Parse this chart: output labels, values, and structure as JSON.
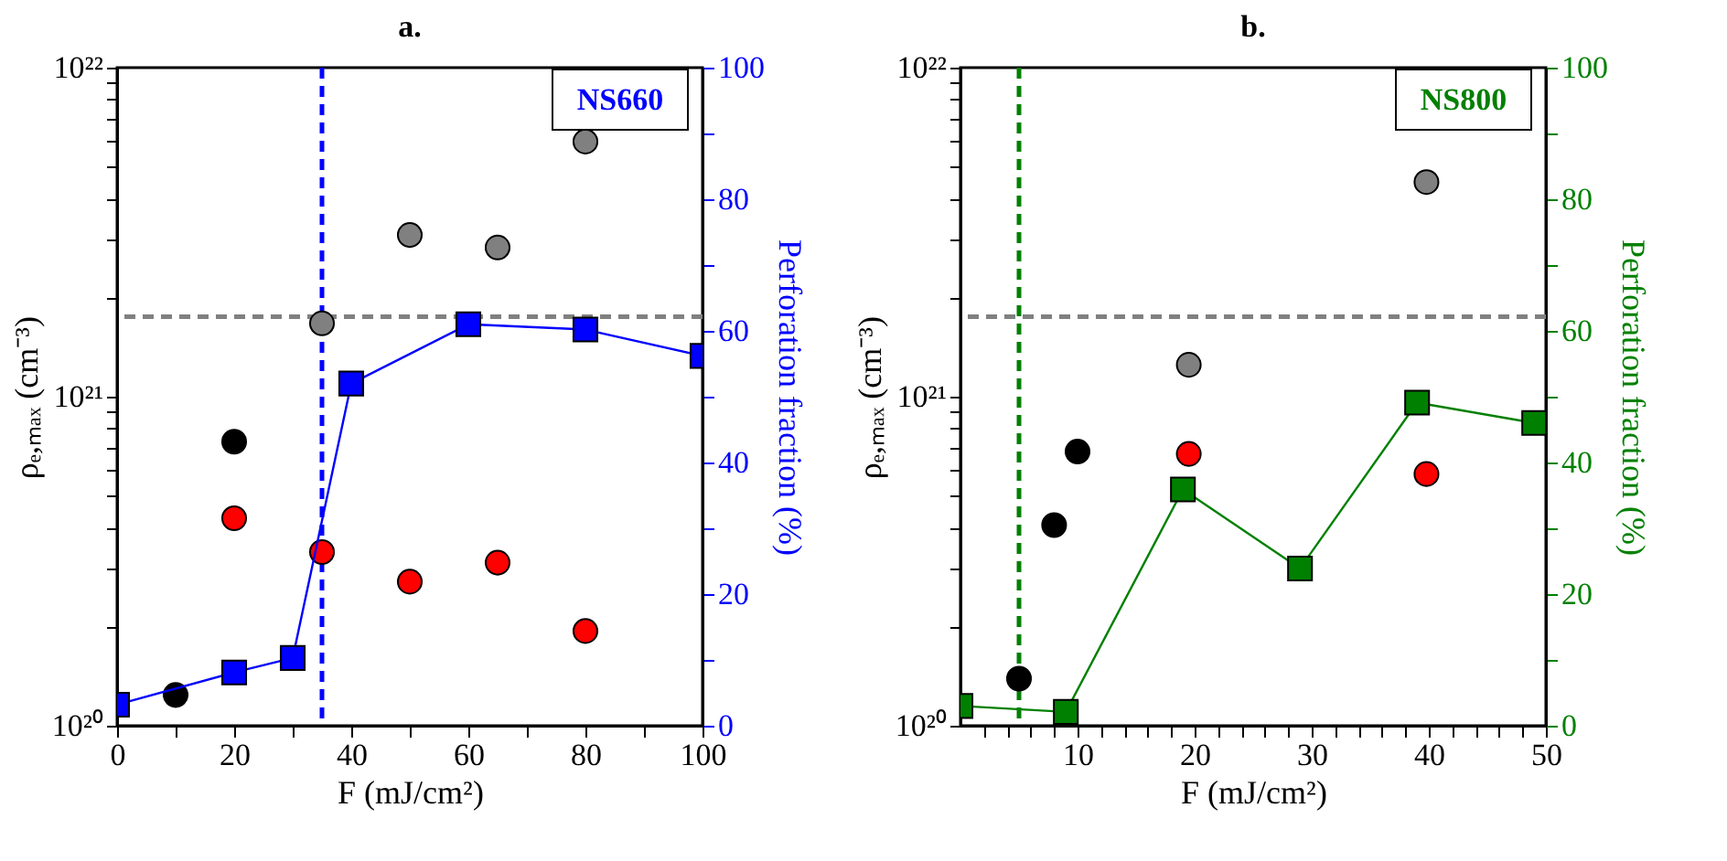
{
  "chart_data": [
    {
      "type": "scatter",
      "title": "a.",
      "xlabel": "F (mJ/cm²)",
      "ylabel": "ρₑ,ₘₐₓ (cm⁻³)",
      "y2label": "Perforation fraction (%)",
      "annotations": [
        "NS660"
      ],
      "log": "y",
      "grid": false,
      "xlim": [
        0,
        100
      ],
      "xticks": [
        0,
        {
          "value": 10,
          "label": null
        },
        20,
        {
          "value": 30,
          "label": null
        },
        40,
        {
          "value": 50,
          "label": null
        },
        60,
        {
          "value": 70,
          "label": null
        },
        80,
        {
          "value": 90,
          "label": null
        },
        100
      ],
      "ylim": [
        1e+20,
        1e+22
      ],
      "yticks": [
        {
          "value": 1e+20,
          "label": "10²⁰"
        },
        {
          "value": 2e+20,
          "label": null
        },
        {
          "value": 3e+20,
          "label": null
        },
        {
          "value": 4e+20,
          "label": null
        },
        {
          "value": 5e+20,
          "label": null
        },
        {
          "value": 6e+20,
          "label": null
        },
        {
          "value": 7e+20,
          "label": null
        },
        {
          "value": 8e+20,
          "label": null
        },
        {
          "value": 9e+20,
          "label": null
        },
        {
          "value": 1e+21,
          "label": "10²¹"
        },
        {
          "value": 2e+21,
          "label": null
        },
        {
          "value": 3e+21,
          "label": null
        },
        {
          "value": 4e+21,
          "label": null
        },
        {
          "value": 5e+21,
          "label": null
        },
        {
          "value": 6e+21,
          "label": null
        },
        {
          "value": 7e+21,
          "label": null
        },
        {
          "value": 8e+21,
          "label": null
        },
        {
          "value": 9e+21,
          "label": null
        },
        {
          "value": 1e+22,
          "label": "10²²"
        }
      ],
      "y2lim": [
        0,
        100
      ],
      "y2ticks": [
        0,
        {
          "value": 10,
          "label": null
        },
        20,
        {
          "value": 30,
          "label": null
        },
        40,
        {
          "value": 50,
          "label": null
        },
        60,
        {
          "value": 70,
          "label": null
        },
        80,
        {
          "value": 90,
          "label": null
        },
        100
      ],
      "ref_lines": [
        {
          "axis": "y",
          "value": 1.75e+21,
          "color": "#808080",
          "line_style": "dashed"
        },
        {
          "axis": "x",
          "value": 35,
          "color": "#0000ff",
          "line_style": "dashed"
        }
      ],
      "series": [
        {
          "marker": "circle",
          "color": "#000000",
          "x": [
            10,
            20
          ],
          "values": [
            1.24e+20,
            7.3e+20
          ]
        },
        {
          "marker": "circle",
          "color": "#808080",
          "x": [
            35,
            50,
            65,
            80
          ],
          "values": [
            1.67e+21,
            3.1e+21,
            2.84e+21,
            5.96e+21
          ]
        },
        {
          "marker": "circle",
          "color": "#ff0000",
          "x": [
            20,
            35,
            50,
            65,
            80
          ],
          "values": [
            4.27e+20,
            3.37e+20,
            2.74e+20,
            3.13e+20,
            1.94e+20
          ]
        },
        {
          "type": "line",
          "marker": "square",
          "line_style": "solid",
          "axis": "y2",
          "color": "#0000ff",
          "x": [
            0,
            20,
            30,
            40,
            60,
            80,
            100
          ],
          "values": [
            3.2,
            8.1,
            10.3,
            52,
            61,
            60.2,
            56.2
          ]
        }
      ]
    },
    {
      "type": "scatter",
      "title": "b.",
      "xlabel": "F (mJ/cm²)",
      "ylabel": "ρₑ,ₘₐₓ (cm⁻³)",
      "y2label": "Perforation fraction (%)",
      "annotations": [
        "NS800"
      ],
      "log": "y",
      "grid": false,
      "xlim": [
        0,
        50
      ],
      "xticks": [
        {
          "value": 2,
          "label": null
        },
        {
          "value": 4,
          "label": null
        },
        {
          "value": 6,
          "label": null
        },
        {
          "value": 8,
          "label": null
        },
        10,
        {
          "value": 12,
          "label": null
        },
        {
          "value": 14,
          "label": null
        },
        {
          "value": 16,
          "label": null
        },
        {
          "value": 18,
          "label": null
        },
        20,
        {
          "value": 22,
          "label": null
        },
        {
          "value": 24,
          "label": null
        },
        {
          "value": 26,
          "label": null
        },
        {
          "value": 28,
          "label": null
        },
        30,
        {
          "value": 32,
          "label": null
        },
        {
          "value": 34,
          "label": null
        },
        {
          "value": 36,
          "label": null
        },
        {
          "value": 38,
          "label": null
        },
        40,
        {
          "value": 42,
          "label": null
        },
        {
          "value": 44,
          "label": null
        },
        {
          "value": 46,
          "label": null
        },
        {
          "value": 48,
          "label": null
        },
        50
      ],
      "ylim": [
        1e+20,
        1e+22
      ],
      "yticks": [
        {
          "value": 1e+20,
          "label": "10²⁰"
        },
        {
          "value": 2e+20,
          "label": null
        },
        {
          "value": 3e+20,
          "label": null
        },
        {
          "value": 4e+20,
          "label": null
        },
        {
          "value": 5e+20,
          "label": null
        },
        {
          "value": 6e+20,
          "label": null
        },
        {
          "value": 7e+20,
          "label": null
        },
        {
          "value": 8e+20,
          "label": null
        },
        {
          "value": 9e+20,
          "label": null
        },
        {
          "value": 1e+21,
          "label": "10²¹"
        },
        {
          "value": 2e+21,
          "label": null
        },
        {
          "value": 3e+21,
          "label": null
        },
        {
          "value": 4e+21,
          "label": null
        },
        {
          "value": 5e+21,
          "label": null
        },
        {
          "value": 6e+21,
          "label": null
        },
        {
          "value": 7e+21,
          "label": null
        },
        {
          "value": 8e+21,
          "label": null
        },
        {
          "value": 9e+21,
          "label": null
        },
        {
          "value": 1e+22,
          "label": "10²²"
        }
      ],
      "y2lim": [
        0,
        100
      ],
      "y2ticks": [
        0,
        {
          "value": 10,
          "label": null
        },
        20,
        {
          "value": 30,
          "label": null
        },
        40,
        {
          "value": 50,
          "label": null
        },
        60,
        {
          "value": 70,
          "label": null
        },
        80,
        {
          "value": 90,
          "label": null
        },
        100
      ],
      "ref_lines": [
        {
          "axis": "y",
          "value": 1.75e+21,
          "color": "#808080",
          "line_style": "dashed"
        },
        {
          "axis": "x",
          "value": 5,
          "color": "#008000",
          "line_style": "dashed"
        }
      ],
      "series": [
        {
          "marker": "circle",
          "color": "#000000",
          "x": [
            5,
            8,
            10
          ],
          "values": [
            1.39e+20,
            4.07e+20,
            6.81e+20
          ]
        },
        {
          "marker": "circle",
          "color": "#808080",
          "x": [
            19.5,
            39.8
          ],
          "values": [
            1.25e+21,
            4.49e+21
          ]
        },
        {
          "marker": "circle",
          "color": "#ff0000",
          "x": [
            19.5,
            39.8
          ],
          "values": [
            6.7e+20,
            5.82e+20
          ]
        },
        {
          "type": "line",
          "marker": "square",
          "line_style": "solid",
          "axis": "y2",
          "color": "#008000",
          "x": [
            0,
            9,
            19,
            29,
            39,
            49
          ],
          "values": [
            3.0,
            2.1,
            35.9,
            23.9,
            49.1,
            46.0
          ]
        }
      ]
    }
  ]
}
